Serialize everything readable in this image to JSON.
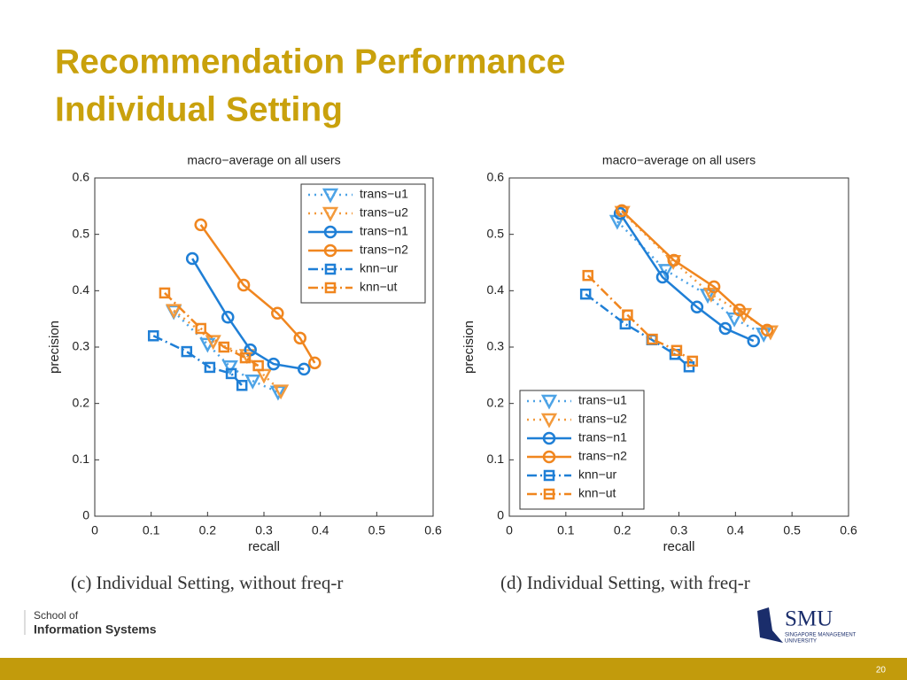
{
  "slide": {
    "title": [
      "Recommendation Performance",
      "Individual Setting"
    ],
    "footer": [
      "School of",
      "Information Systems"
    ],
    "logo": [
      "SMU",
      "SINGAPORE MANAGEMENT",
      "UNIVERSITY"
    ],
    "page": "20"
  },
  "chart_data": [
    {
      "type": "line",
      "title": "macro−average on all users",
      "xlabel": "recall",
      "ylabel": "precision",
      "caption": "(c) Individual Setting, without freq-r",
      "legend": "upper right",
      "grid": false,
      "xlim": [
        0,
        0.6
      ],
      "ylim": [
        0,
        0.6
      ],
      "xticks": [
        0,
        0.1,
        0.2,
        0.3,
        0.4,
        0.5,
        0.6
      ],
      "yticks": [
        0,
        0.1,
        0.2,
        0.3,
        0.4,
        0.5,
        0.6
      ],
      "series": [
        {
          "name": "trans−u1",
          "color": "#4da3e6",
          "dash": "dotted",
          "marker": "triangle",
          "x": [
            0.14,
            0.2,
            0.24,
            0.28,
            0.325
          ],
          "values": [
            0.363,
            0.305,
            0.265,
            0.24,
            0.22
          ]
        },
        {
          "name": "trans−u2",
          "color": "#f39a3c",
          "dash": "dotted",
          "marker": "triangle",
          "x": [
            0.14,
            0.21,
            0.27,
            0.3,
            0.33
          ],
          "values": [
            0.365,
            0.31,
            0.285,
            0.25,
            0.222
          ]
        },
        {
          "name": "trans−n1",
          "color": "#1f7fd6",
          "dash": "solid",
          "marker": "circle",
          "x": [
            0.173,
            0.236,
            0.276,
            0.317,
            0.371
          ],
          "values": [
            0.457,
            0.353,
            0.295,
            0.27,
            0.261
          ]
        },
        {
          "name": "trans−n2",
          "color": "#f0861f",
          "dash": "solid",
          "marker": "circle",
          "x": [
            0.188,
            0.264,
            0.324,
            0.364,
            0.39
          ],
          "values": [
            0.517,
            0.41,
            0.36,
            0.316,
            0.272
          ]
        },
        {
          "name": "knn−ur",
          "color": "#1f7fd6",
          "dash": "dashdot",
          "marker": "square",
          "x": [
            0.104,
            0.163,
            0.204,
            0.242,
            0.261
          ],
          "values": [
            0.32,
            0.292,
            0.264,
            0.253,
            0.232
          ]
        },
        {
          "name": "knn−ut",
          "color": "#f0861f",
          "dash": "dashdot",
          "marker": "square",
          "x": [
            0.124,
            0.188,
            0.229,
            0.267,
            0.29
          ],
          "values": [
            0.396,
            0.333,
            0.3,
            0.281,
            0.267
          ]
        }
      ]
    },
    {
      "type": "line",
      "title": "macro−average on all users",
      "xlabel": "recall",
      "ylabel": "precision",
      "caption": "(d) Individual Setting, with freq-r",
      "legend": "lower left",
      "grid": false,
      "xlim": [
        0,
        0.6
      ],
      "ylim": [
        0,
        0.6
      ],
      "xticks": [
        0,
        0.1,
        0.2,
        0.3,
        0.4,
        0.5,
        0.6
      ],
      "yticks": [
        0,
        0.1,
        0.2,
        0.3,
        0.4,
        0.5,
        0.6
      ],
      "series": [
        {
          "name": "trans−u1",
          "color": "#4da3e6",
          "dash": "dotted",
          "marker": "triangle",
          "x": [
            0.191,
            0.277,
            0.351,
            0.398,
            0.45
          ],
          "values": [
            0.523,
            0.436,
            0.392,
            0.35,
            0.323
          ]
        },
        {
          "name": "trans−u2",
          "color": "#f39a3c",
          "dash": "dotted",
          "marker": "triangle",
          "x": [
            0.2,
            0.29,
            0.357,
            0.415,
            0.462
          ],
          "values": [
            0.539,
            0.452,
            0.394,
            0.358,
            0.327
          ]
        },
        {
          "name": "trans−n1",
          "color": "#1f7fd6",
          "dash": "solid",
          "marker": "circle",
          "x": [
            0.196,
            0.271,
            0.332,
            0.382,
            0.432
          ],
          "values": [
            0.537,
            0.424,
            0.371,
            0.333,
            0.311
          ]
        },
        {
          "name": "trans−n2",
          "color": "#f0861f",
          "dash": "solid",
          "marker": "circle",
          "x": [
            0.199,
            0.291,
            0.362,
            0.407,
            0.456
          ],
          "values": [
            0.542,
            0.454,
            0.407,
            0.366,
            0.33
          ]
        },
        {
          "name": "knn−ur",
          "color": "#1f7fd6",
          "dash": "dashdot",
          "marker": "square",
          "x": [
            0.135,
            0.205,
            0.252,
            0.293,
            0.318
          ],
          "values": [
            0.394,
            0.341,
            0.313,
            0.287,
            0.265
          ]
        },
        {
          "name": "knn−ut",
          "color": "#f0861f",
          "dash": "dashdot",
          "marker": "square",
          "x": [
            0.139,
            0.209,
            0.253,
            0.296,
            0.324
          ],
          "values": [
            0.427,
            0.357,
            0.314,
            0.294,
            0.275
          ]
        }
      ]
    }
  ]
}
